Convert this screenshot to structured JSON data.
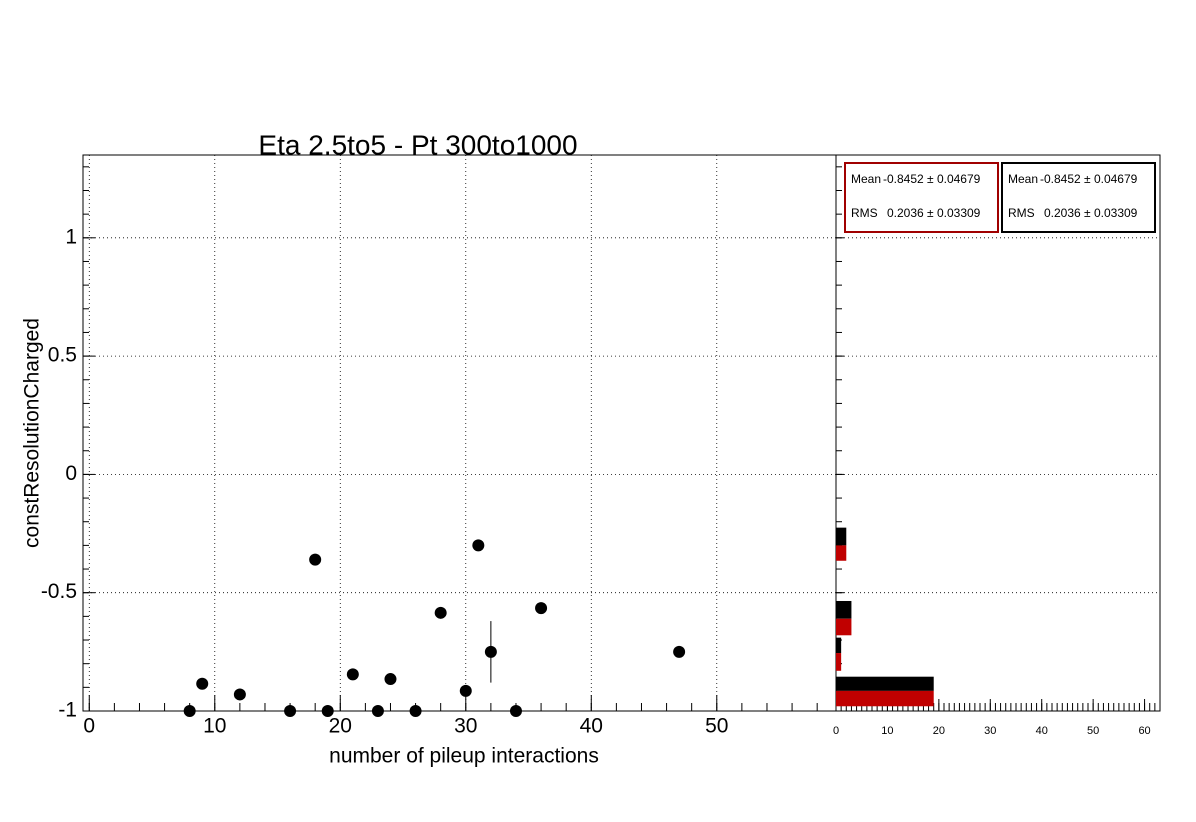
{
  "chart_data": [
    {
      "type": "scatter",
      "title": "Eta 2.5to5 - Pt 300to1000",
      "x_label": "number of pileup interactions",
      "y_label": "constResolutionCharged",
      "x": [
        8,
        9,
        12,
        16,
        18,
        19,
        21,
        23,
        24,
        26,
        28,
        30,
        31,
        32,
        34,
        36,
        47
      ],
      "values": [
        -1,
        -0.885,
        -0.93,
        -1,
        -0.36,
        -1,
        -0.845,
        -1,
        -0.865,
        -1,
        -0.585,
        -0.915,
        -0.3,
        -0.75,
        -1,
        -0.565,
        -0.75
      ],
      "errors": [
        null,
        null,
        null,
        null,
        null,
        null,
        null,
        null,
        null,
        null,
        null,
        null,
        null,
        0.13,
        null,
        null,
        null
      ],
      "color": "#000000",
      "xlim": [
        -0.5,
        59.5
      ],
      "xticks": [
        0,
        10,
        20,
        30,
        40,
        50
      ],
      "ylim": [
        -1,
        1.35
      ],
      "yticks": [
        -1,
        -0.5,
        0,
        0.5,
        1
      ],
      "grid": true
    },
    {
      "type": "histogram",
      "series": [
        {
          "color": "#000000",
          "bars": [
            [
              -0.915,
              -0.855,
              19
            ],
            [
              -0.755,
              -0.69,
              1
            ],
            [
              -0.61,
              -0.535,
              3
            ],
            [
              -0.3,
              -0.225,
              2
            ]
          ]
        },
        {
          "color": "#c00000",
          "bars": [
            [
              -0.98,
              -0.915,
              19
            ],
            [
              -0.83,
              -0.755,
              1
            ],
            [
              -0.68,
              -0.61,
              3
            ],
            [
              -0.365,
              -0.3,
              2
            ]
          ]
        }
      ],
      "stats": [
        {
          "color": "#a00000",
          "mean_label": "Mean",
          "mean": "-0.8452 ± 0.04679",
          "rms_label": "RMS",
          "rms": "0.2036 ± 0.03309"
        },
        {
          "color": "#000000",
          "mean_label": "Mean",
          "mean": "-0.8452 ± 0.04679",
          "rms_label": "RMS",
          "rms": "0.2036 ± 0.03309"
        }
      ],
      "xlim": [
        0,
        63
      ],
      "xticks": [
        0,
        10,
        20,
        30,
        40,
        50,
        60
      ],
      "ylim": [
        -1,
        1.35
      ],
      "yticks": [
        -1,
        -0.5,
        0,
        0.5,
        1
      ],
      "grid": true
    }
  ]
}
